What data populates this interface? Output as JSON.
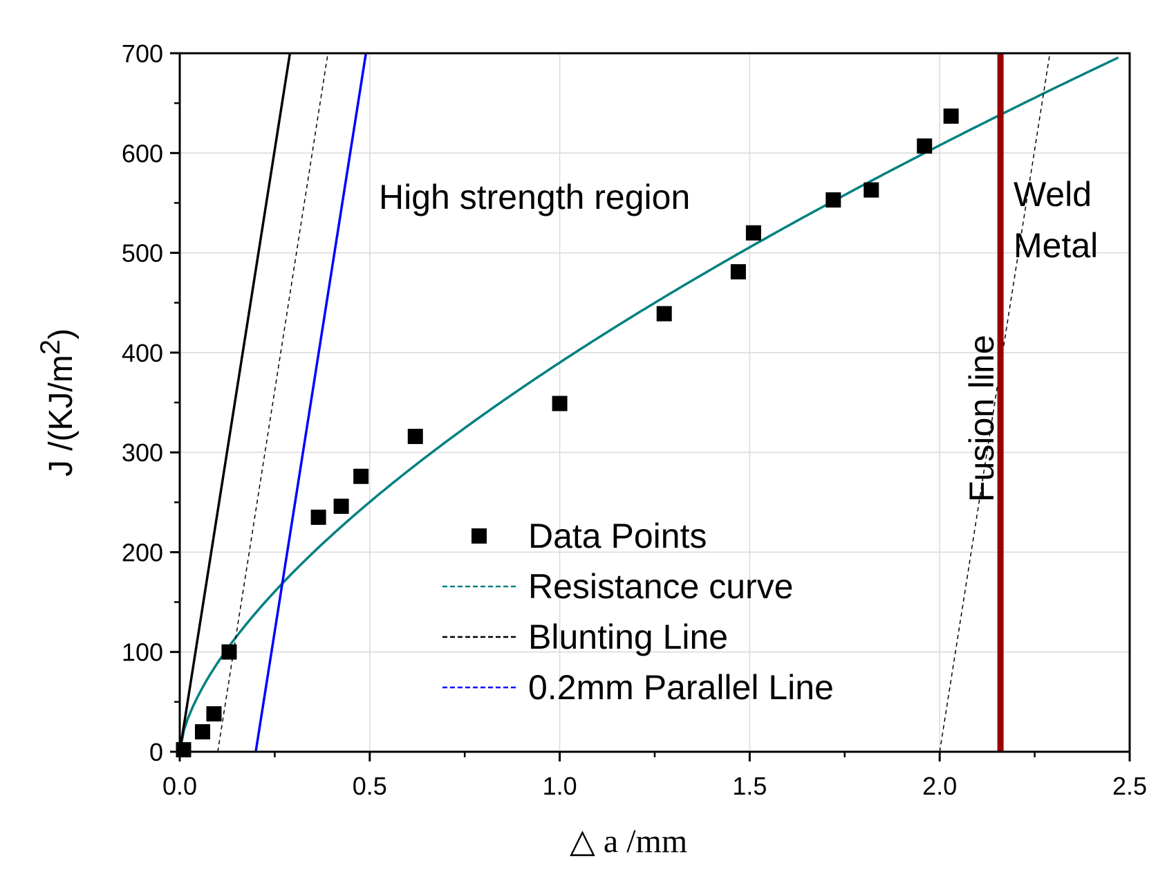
{
  "chart_data": {
    "type": "scatter",
    "xlabel": "△  a /mm",
    "ylabel": "J /(KJ/m",
    "ylabel_sup": "2",
    "ylabel_close": ")",
    "xlim": [
      0,
      2.5
    ],
    "ylim": [
      0,
      700
    ],
    "xticks": [
      0.0,
      0.5,
      1.0,
      1.5,
      2.0,
      2.5
    ],
    "xtick_labels": [
      "0.0",
      "0.5",
      "1.0",
      "1.5",
      "2.0",
      "2.5"
    ],
    "yticks": [
      0,
      100,
      200,
      300,
      400,
      500,
      600,
      700
    ],
    "ytick_labels": [
      "0",
      "100",
      "200",
      "300",
      "400",
      "500",
      "600",
      "700"
    ],
    "grid": true,
    "series": [
      {
        "name": "Data Points",
        "kind": "markers",
        "color": "#000000",
        "x": [
          0.01,
          0.06,
          0.09,
          0.13,
          0.365,
          0.425,
          0.477,
          0.62,
          1.0,
          1.275,
          1.47,
          1.51,
          1.72,
          1.82,
          1.96,
          2.03
        ],
        "y": [
          2,
          20,
          38,
          100,
          235,
          246,
          276,
          316,
          349,
          439,
          481,
          520,
          553,
          563,
          607,
          637
        ]
      },
      {
        "name": "Resistance curve",
        "kind": "power-fit",
        "color": "#008080",
        "coef": 390,
        "exponent": 0.64,
        "x_range": [
          0,
          2.47
        ]
      },
      {
        "name": "Blunting Line",
        "kind": "line",
        "color": "#000000",
        "x": [
          0.0,
          0.29
        ],
        "y": [
          0,
          700
        ]
      },
      {
        "name": "0.2mm Parallel Line",
        "kind": "line",
        "color": "#0000ff",
        "x": [
          0.2,
          0.49
        ],
        "y": [
          0,
          700
        ]
      },
      {
        "name": "offset-dashed-left",
        "kind": "dashed",
        "color": "#000000",
        "x": [
          0.1,
          0.39
        ],
        "y": [
          0,
          700
        ]
      },
      {
        "name": "offset-dashed-right",
        "kind": "dashed",
        "color": "#000000",
        "x": [
          2.0,
          2.29
        ],
        "y": [
          0,
          700
        ]
      },
      {
        "name": "Fusion line",
        "kind": "vertical",
        "color": "#990000",
        "x": 2.16
      }
    ],
    "annotations": {
      "high_strength": "High strength region",
      "weld_line1": "Weld",
      "weld_line2": "Metal",
      "fusion": "Fusion line"
    },
    "legend": {
      "position": "lower-center",
      "entries": [
        "Data Points",
        "Resistance curve",
        "Blunting Line",
        "0.2mm Parallel Line"
      ],
      "colors": [
        "#000000",
        "#008080",
        "#000000",
        "#0000ff"
      ]
    }
  }
}
